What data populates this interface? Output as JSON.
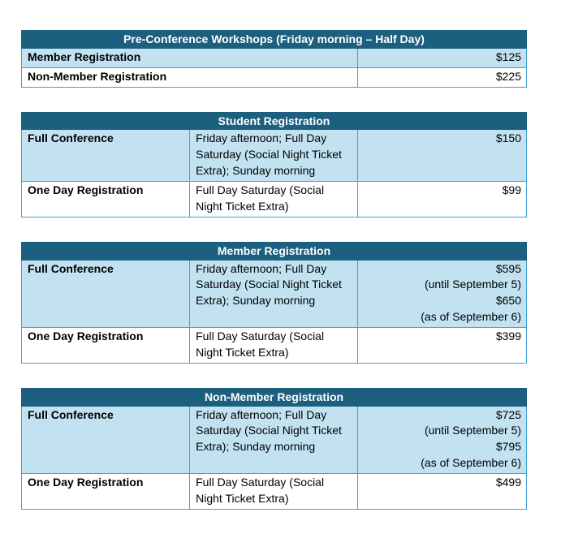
{
  "colors": {
    "header_bg": "#1c5f7f",
    "header_text": "#ffffff",
    "shaded_row_bg": "#c2e2f2",
    "row_bg": "#ffffff",
    "border": "#41a1d1",
    "text": "#000000"
  },
  "tables": [
    {
      "title": "Pre-Conference Workshops (Friday morning – Half Day)",
      "rows": [
        {
          "label": "Member Registration",
          "price": "$125"
        },
        {
          "label": "Non-Member Registration",
          "price": "$225"
        }
      ]
    },
    {
      "title": "Student Registration",
      "rows": [
        {
          "label": "Full Conference",
          "description": "Friday afternoon; Full Day Saturday (Social Night Ticket Extra); Sunday morning",
          "price": "$150"
        },
        {
          "label": "One Day Registration",
          "description": "Full Day Saturday (Social Night Ticket Extra)",
          "price": "$99"
        }
      ]
    },
    {
      "title": "Member Registration",
      "rows": [
        {
          "label": "Full Conference",
          "description": "Friday afternoon; Full Day Saturday (Social Night Ticket Extra); Sunday morning",
          "price_lines": [
            "$595",
            "(until September 5)",
            "$650",
            "(as of September 6)"
          ]
        },
        {
          "label": "One Day Registration",
          "description": "Full Day Saturday (Social Night Ticket Extra)",
          "price": "$399"
        }
      ]
    },
    {
      "title": "Non-Member Registration",
      "rows": [
        {
          "label": "Full Conference",
          "description": "Friday afternoon; Full Day Saturday (Social Night Ticket Extra); Sunday morning",
          "price_lines": [
            "$725",
            "(until September 5)",
            "$795",
            "(as of September 6)"
          ]
        },
        {
          "label": "One Day Registration",
          "description": "Full Day Saturday (Social Night Ticket Extra)",
          "price": "$499"
        }
      ]
    }
  ]
}
